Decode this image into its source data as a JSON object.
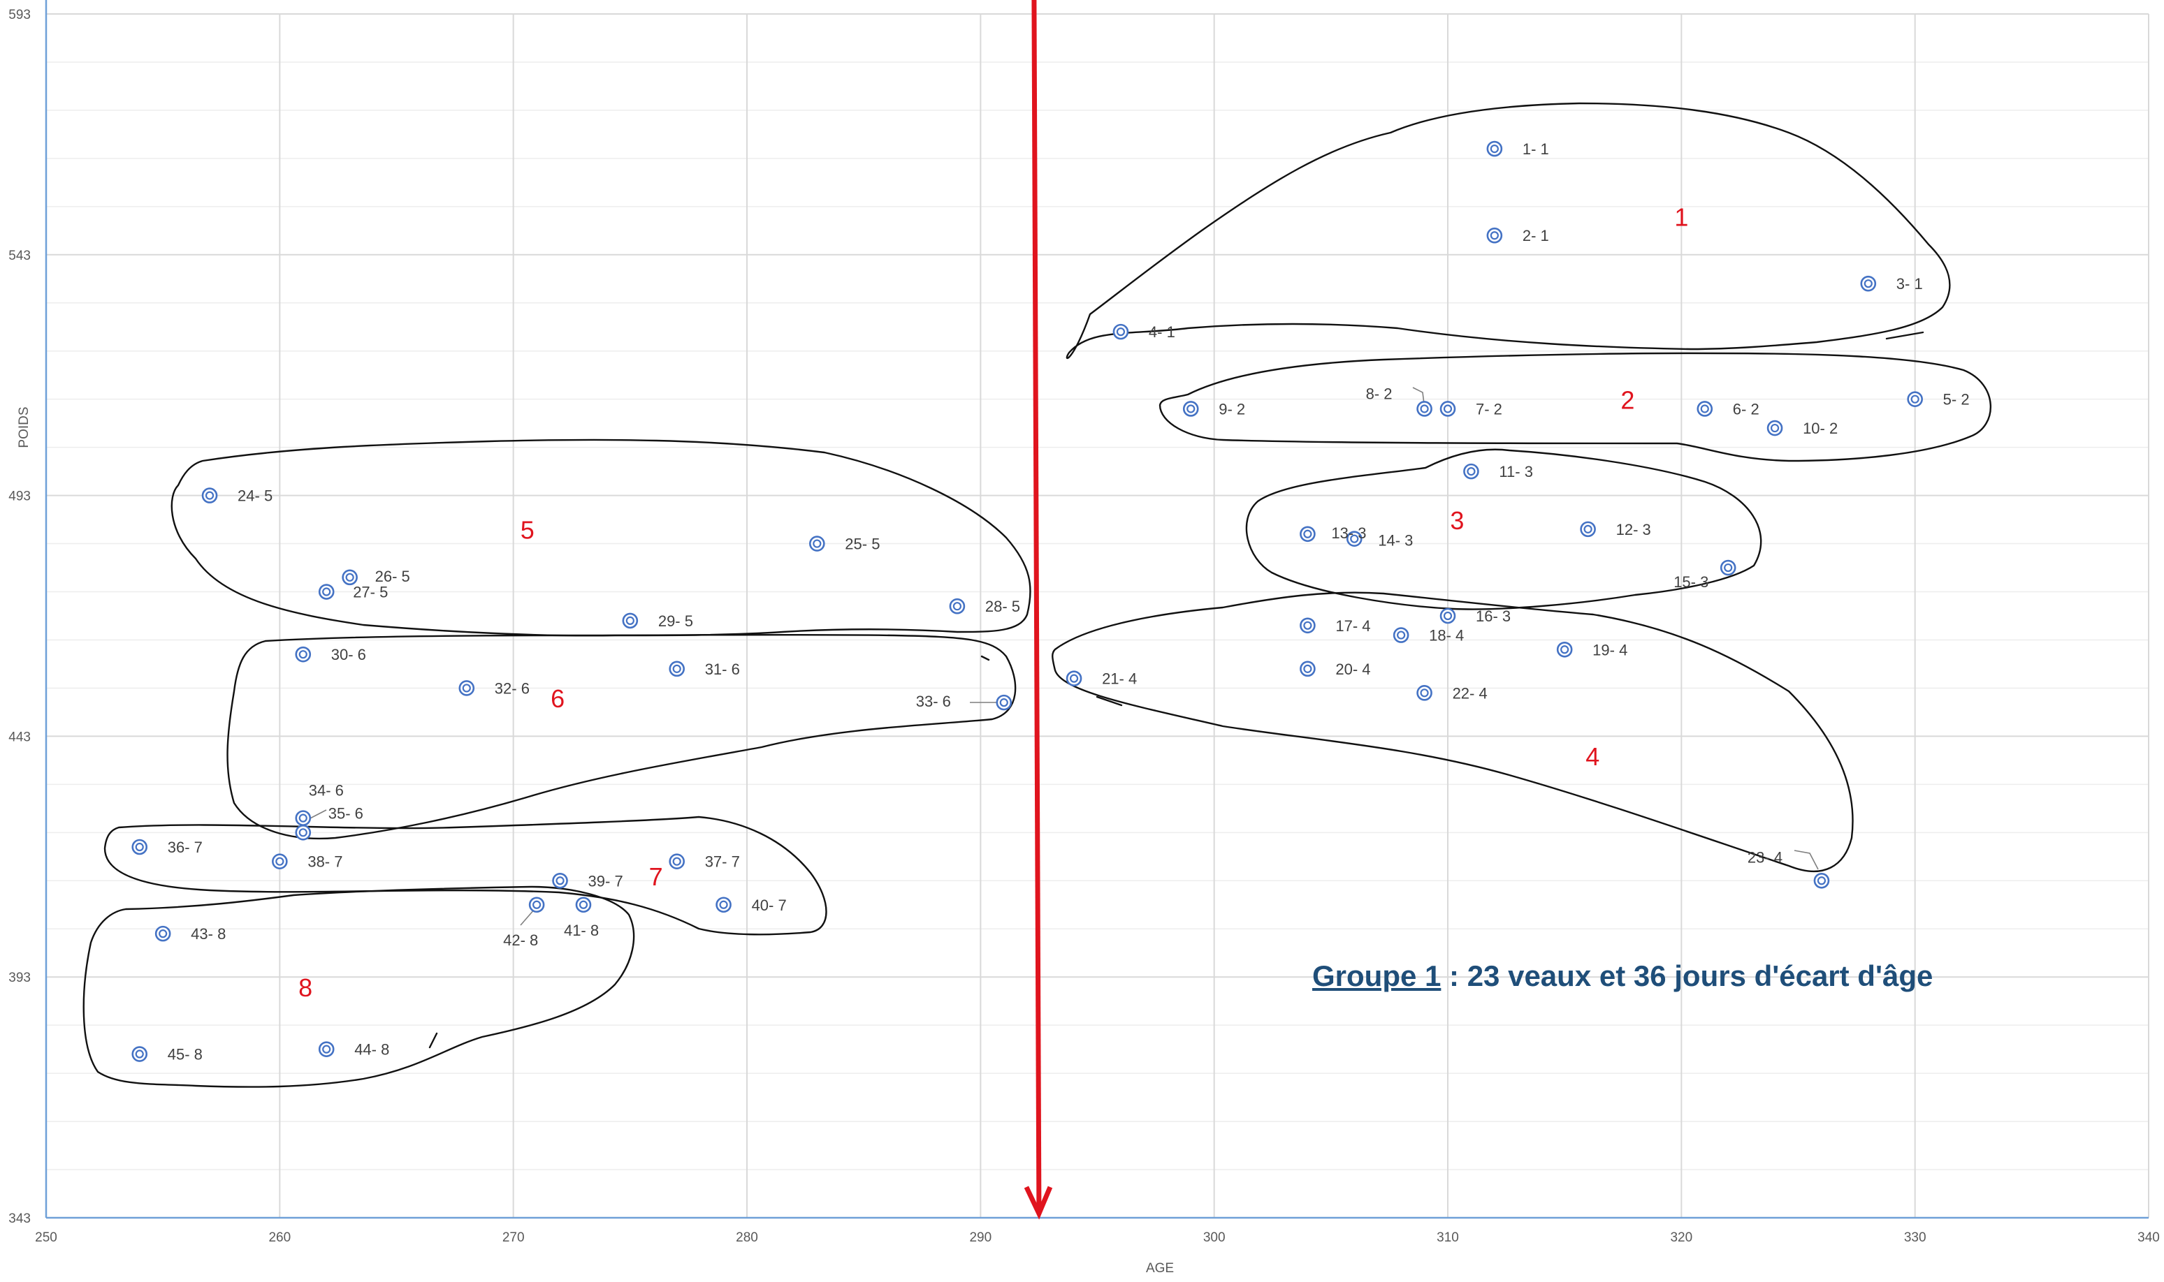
{
  "caption": {
    "group": "Groupe 1",
    "text": " : 23 veaux et 36 jours d'écart d'âge"
  },
  "chart_data": {
    "type": "scatter",
    "xlabel": "AGE",
    "ylabel": "POIDS",
    "xlim": [
      250,
      340
    ],
    "ylim": [
      343,
      593
    ],
    "x_ticks": [
      250,
      260,
      270,
      280,
      290,
      300,
      310,
      320,
      330,
      340
    ],
    "y_ticks": [
      343,
      393,
      443,
      493,
      543,
      593
    ],
    "grid": true,
    "marker_color": "#4472c4",
    "annotation_color": "#e0141e",
    "cutoff_age": 292.5,
    "points": [
      {
        "label": "1- 1",
        "x": 312,
        "y": 565
      },
      {
        "label": "2- 1",
        "x": 312,
        "y": 547
      },
      {
        "label": "3- 1",
        "x": 328,
        "y": 537
      },
      {
        "label": "4- 1",
        "x": 296,
        "y": 527
      },
      {
        "label": "5- 2",
        "x": 330,
        "y": 513
      },
      {
        "label": "6- 2",
        "x": 321,
        "y": 511
      },
      {
        "label": "7- 2",
        "x": 310,
        "y": 511
      },
      {
        "label": "8- 2",
        "x": 309,
        "y": 511
      },
      {
        "label": "9- 2",
        "x": 299,
        "y": 511
      },
      {
        "label": "10- 2",
        "x": 324,
        "y": 507
      },
      {
        "label": "11- 3",
        "x": 311,
        "y": 498
      },
      {
        "label": "12- 3",
        "x": 316,
        "y": 486
      },
      {
        "label": "13- 3",
        "x": 304,
        "y": 485
      },
      {
        "label": "14- 3",
        "x": 306,
        "y": 484
      },
      {
        "label": "15- 3",
        "x": 322,
        "y": 478
      },
      {
        "label": "16- 3",
        "x": 310,
        "y": 468
      },
      {
        "label": "17- 4",
        "x": 304,
        "y": 466
      },
      {
        "label": "18- 4",
        "x": 308,
        "y": 464
      },
      {
        "label": "19- 4",
        "x": 315,
        "y": 461
      },
      {
        "label": "20- 4",
        "x": 304,
        "y": 457
      },
      {
        "label": "21- 4",
        "x": 294,
        "y": 455
      },
      {
        "label": "22- 4",
        "x": 309,
        "y": 452
      },
      {
        "label": "23- 4",
        "x": 326,
        "y": 413
      },
      {
        "label": "24- 5",
        "x": 257,
        "y": 493
      },
      {
        "label": "25- 5",
        "x": 283,
        "y": 483
      },
      {
        "label": "26- 5",
        "x": 263,
        "y": 476
      },
      {
        "label": "27- 5",
        "x": 262,
        "y": 473
      },
      {
        "label": "28- 5",
        "x": 289,
        "y": 470
      },
      {
        "label": "29- 5",
        "x": 275,
        "y": 467
      },
      {
        "label": "30- 6",
        "x": 261,
        "y": 460
      },
      {
        "label": "31- 6",
        "x": 277,
        "y": 457
      },
      {
        "label": "32- 6",
        "x": 268,
        "y": 453
      },
      {
        "label": "33- 6",
        "x": 291,
        "y": 450
      },
      {
        "label": "34- 6",
        "x": 261,
        "y": 426
      },
      {
        "label": "35- 6",
        "x": 261,
        "y": 423
      },
      {
        "label": "36- 7",
        "x": 254,
        "y": 420
      },
      {
        "label": "37- 7",
        "x": 277,
        "y": 417
      },
      {
        "label": "38- 7",
        "x": 260,
        "y": 417
      },
      {
        "label": "39- 7",
        "x": 272,
        "y": 413
      },
      {
        "label": "40- 7",
        "x": 279,
        "y": 408
      },
      {
        "label": "41- 8",
        "x": 273,
        "y": 408
      },
      {
        "label": "42- 8",
        "x": 271,
        "y": 408
      },
      {
        "label": "43- 8",
        "x": 255,
        "y": 402
      },
      {
        "label": "44- 8",
        "x": 262,
        "y": 378
      },
      {
        "label": "45- 8",
        "x": 254,
        "y": 377
      }
    ],
    "group_labels": [
      {
        "text": "1",
        "x": 320,
        "y": 549
      },
      {
        "text": "2",
        "x": 317.7,
        "y": 511
      },
      {
        "text": "3",
        "x": 310.4,
        "y": 486
      },
      {
        "text": "4",
        "x": 316.2,
        "y": 437
      },
      {
        "text": "5",
        "x": 270.6,
        "y": 484
      },
      {
        "text": "6",
        "x": 271.9,
        "y": 449
      },
      {
        "text": "7",
        "x": 276.1,
        "y": 412
      },
      {
        "text": "8",
        "x": 261.1,
        "y": 389
      }
    ]
  }
}
